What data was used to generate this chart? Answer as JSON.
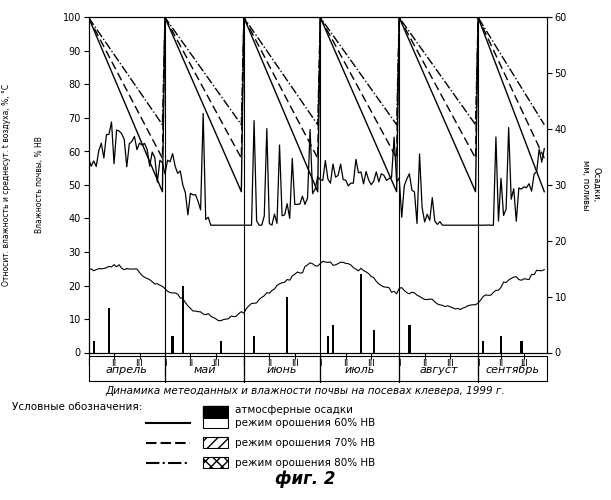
{
  "title": "Динамика метеоданных и влажности почвы на посевах клевера, 1999 г.",
  "fig2_label": "фиг. 2",
  "left_ylabel1": "Относит. влажность и среднесут. t воздуха, %, °С",
  "left_ylabel2": "Влажность почвы, % НВ",
  "right_ylabel": "Осадки, мм, поливы",
  "ylim_left": [
    0,
    100
  ],
  "ylim_right": [
    0,
    60
  ],
  "months": [
    "апрель",
    "май",
    "июнь",
    "июль",
    "август",
    "сентябрь"
  ],
  "month_starts": [
    0,
    30,
    61,
    91,
    122,
    153,
    180
  ],
  "background_color": "#ffffff",
  "legend_cond": "Условные обозначения:",
  "legend_precip": "атмосферные осадки",
  "legend_60": "режим орошения 60% НВ",
  "legend_70": "режим орошения 70% НВ",
  "legend_80": "режим орошения 80% НВ"
}
